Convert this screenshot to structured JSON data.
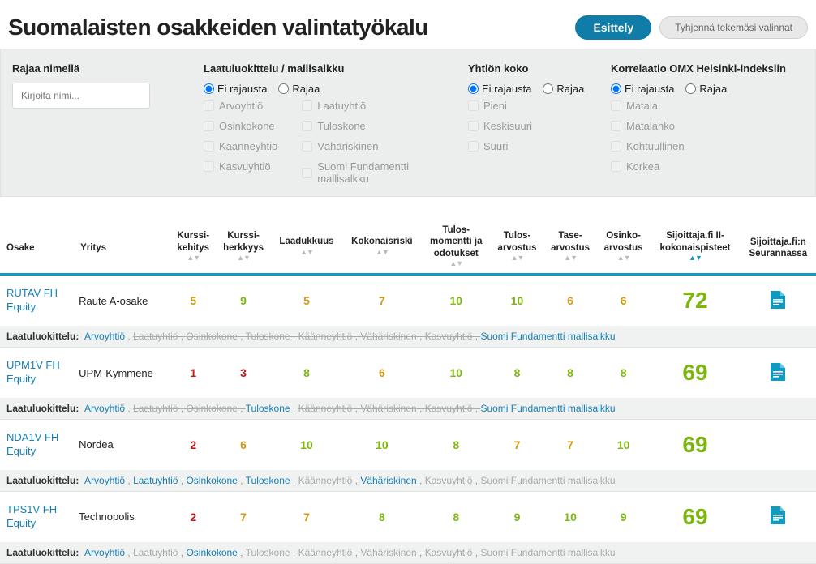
{
  "header": {
    "title": "Suomalaisten osakkeiden valintatyökalu",
    "intro_btn": "Esittely",
    "clear_btn": "Tyhjennä tekemäsi valinnat"
  },
  "filters": {
    "name": {
      "title": "Rajaa nimellä",
      "placeholder": "Kirjoita nimi..."
    },
    "quality": {
      "title": "Laatuluokittelu / mallisalkku",
      "radio_all": "Ei rajausta",
      "radio_limit": "Rajaa",
      "col1": [
        "Arvoyhtiö",
        "Osinkokone",
        "Käänneyhtiö",
        "Kasvuyhtiö"
      ],
      "col2": [
        "Laatuyhtiö",
        "Tuloskone",
        "Vähäriskinen",
        "Suomi Fundamentti mallisalkku"
      ]
    },
    "size": {
      "title": "Yhtiön koko",
      "radio_all": "Ei rajausta",
      "radio_limit": "Rajaa",
      "col1": [
        "Pieni",
        "Keskisuuri",
        "Suuri"
      ]
    },
    "corr": {
      "title": "Korrelaatio OMX Helsinki-indeksiin",
      "radio_all": "Ei rajausta",
      "radio_limit": "Rajaa",
      "col1": [
        "Matala",
        "Matalahko",
        "Kohtuullinen",
        "Korkea"
      ]
    }
  },
  "columns": [
    "Osake",
    "Yritys",
    "Kurssi-\nkehitys",
    "Kurssi-\nherkkyys",
    "Laadukkuus",
    "Kokonaisriski",
    "Tulos-\nmomentti ja\nodotukset",
    "Tulos-\narvostus",
    "Tase-\narvostus",
    "Osinko-\narvostus",
    "Sijoittaja.fi II-\nkokonaispisteet",
    "Sijoittaja.fi:n\nSeurannassa"
  ],
  "score_colors": {
    "1": "#c6161a",
    "2": "#c6161a",
    "3": "#c6161a",
    "5": "#d39a14",
    "6": "#d39a14",
    "7": "#d39a14",
    "8": "#7cb60e",
    "9": "#7cb60e",
    "10": "#7cb60e"
  },
  "tag_label": "Laatuluokittelu:",
  "tag_names": [
    "Arvoyhtiö",
    "Laatuyhtiö",
    "Osinkokone",
    "Tuloskone",
    "Käänneyhtiö",
    "Vähäriskinen",
    "Kasvuyhtiö",
    "Suomi Fundamentti mallisalkku"
  ],
  "rows": [
    {
      "ticker": "RUTAV FH\nEquity",
      "company": "Raute A-osake",
      "scores": [
        5,
        9,
        5,
        7,
        10,
        10,
        6,
        6
      ],
      "total": 72,
      "doc": true,
      "tags_on": [
        true,
        false,
        false,
        false,
        false,
        false,
        false,
        true
      ]
    },
    {
      "ticker": "UPM1V FH\nEquity",
      "company": "UPM-Kymmene",
      "scores": [
        1,
        3,
        8,
        6,
        10,
        8,
        8,
        8
      ],
      "total": 69,
      "doc": true,
      "tags_on": [
        true,
        false,
        false,
        true,
        false,
        false,
        false,
        true
      ]
    },
    {
      "ticker": "NDA1V FH\nEquity",
      "company": "Nordea",
      "scores": [
        2,
        6,
        10,
        10,
        8,
        7,
        7,
        10
      ],
      "total": 69,
      "doc": false,
      "tags_on": [
        true,
        true,
        true,
        true,
        false,
        true,
        false,
        false
      ]
    },
    {
      "ticker": "TPS1V FH\nEquity",
      "company": "Technopolis",
      "scores": [
        2,
        7,
        7,
        8,
        8,
        9,
        10,
        9
      ],
      "total": 69,
      "doc": true,
      "tags_on": [
        true,
        false,
        true,
        false,
        false,
        false,
        false,
        false
      ]
    }
  ]
}
